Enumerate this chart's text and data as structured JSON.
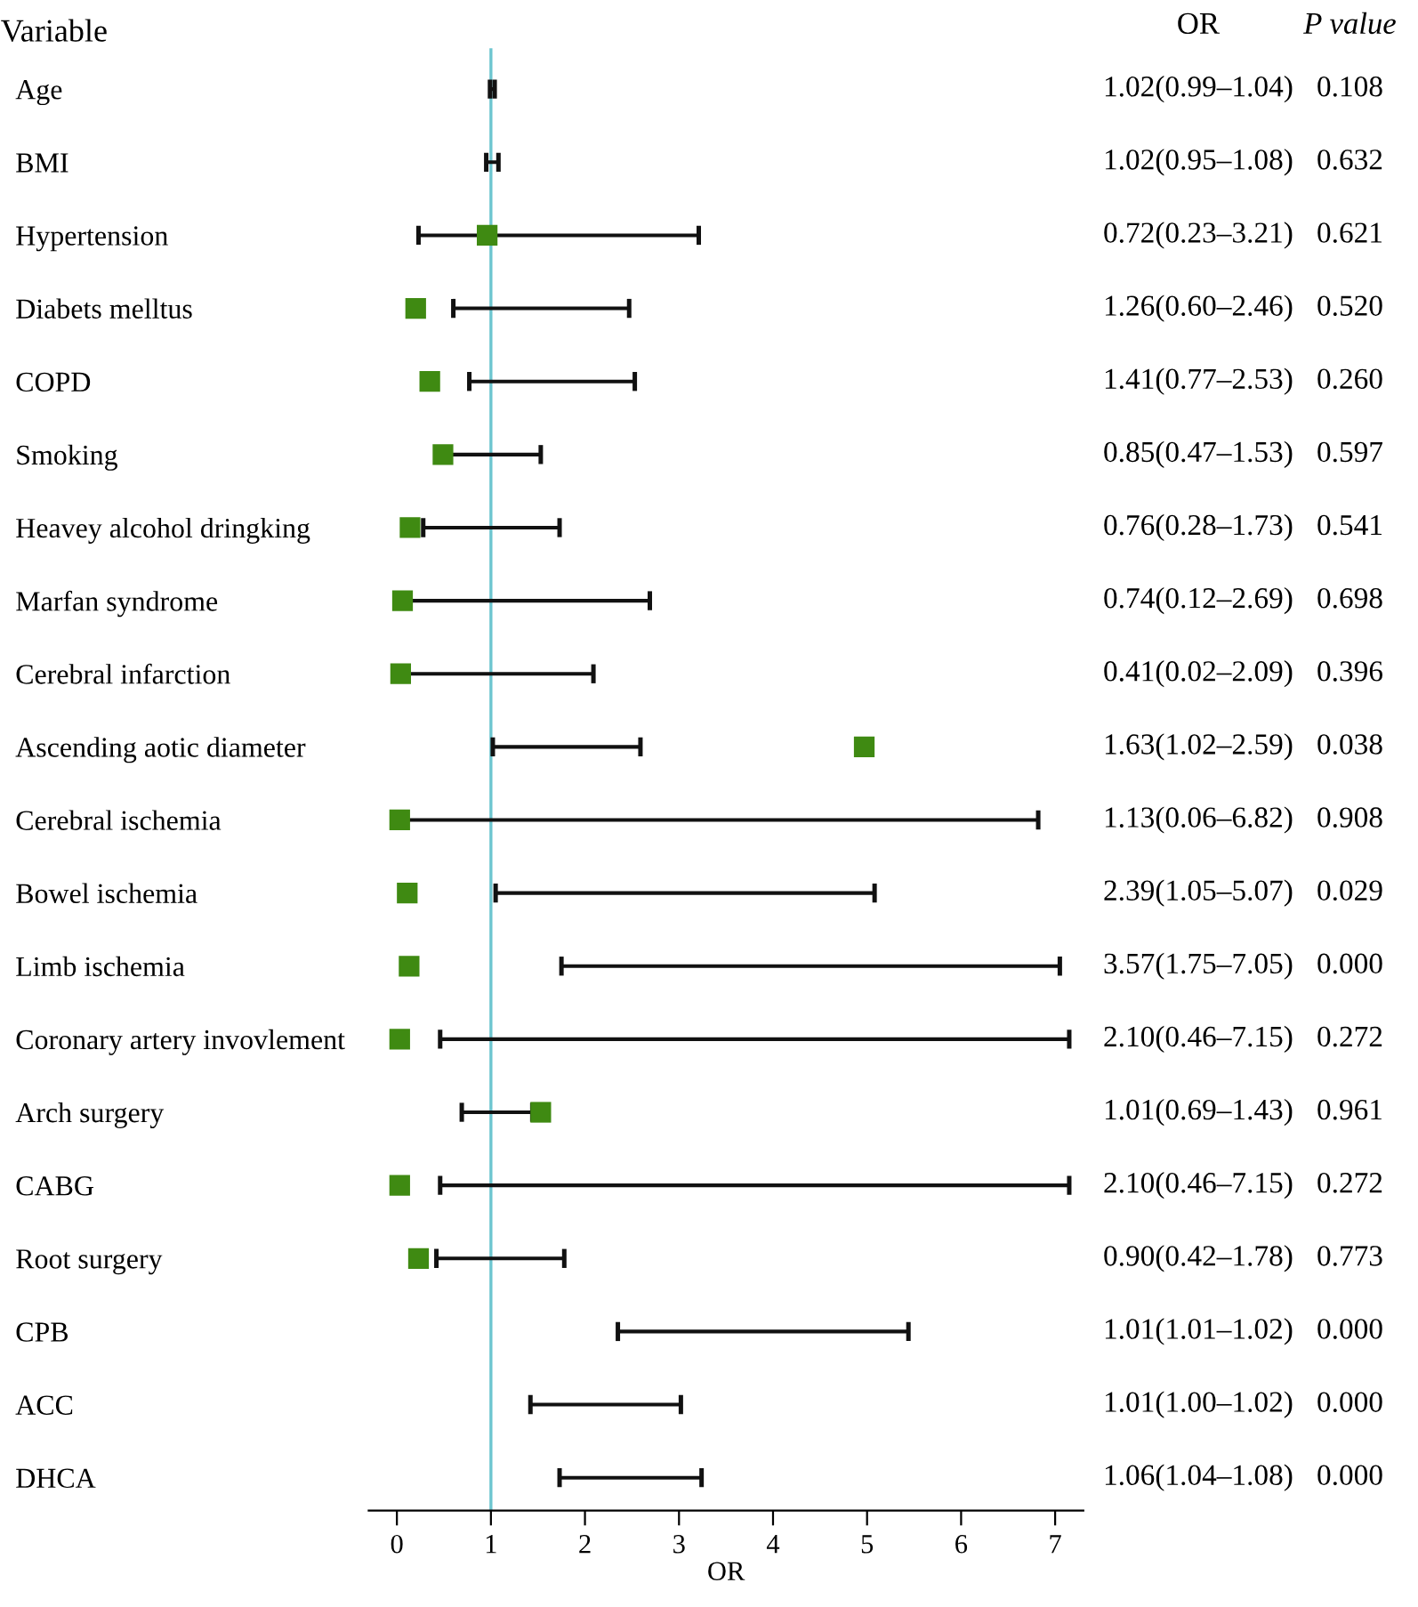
{
  "chart_data": {
    "type": "scatter",
    "orientation": "horizontal",
    "ylabel": "Variable",
    "xlabel": "OR",
    "categories": [
      "Age",
      "BMI",
      "Hypertension",
      "Diabets melltus",
      "COPD",
      "Smoking",
      "Heavey alcohol dringking",
      "Marfan syndrome",
      "Cerebral infarction",
      "Ascending aotic diameter",
      "Cerebral ischemia",
      "Bowel ischemia",
      "Limb ischemia",
      "Coronary artery invovlement",
      "Arch surgery",
      "CABG",
      "Root surgery",
      "CPB",
      "ACC",
      "DHCA"
    ],
    "series": [
      {
        "color": "#3f8a12",
        "marker": "square",
        "values": [
          null,
          null,
          0.96,
          0.2,
          0.35,
          0.49,
          0.14,
          0.06,
          0.04,
          4.97,
          0.03,
          0.11,
          0.13,
          0.03,
          1.53,
          0.03,
          0.23,
          null,
          null,
          null
        ]
      },
      {
        "type": "bar",
        "color": "#111111",
        "base": [
          0.99,
          0.95,
          0.23,
          0.6,
          0.77,
          0.49,
          0.28,
          0.06,
          0.04,
          1.02,
          0.03,
          1.05,
          1.75,
          0.46,
          0.69,
          0.46,
          0.42,
          2.35,
          1.42,
          1.73
        ],
        "values": [
          0.05,
          0.13,
          2.98,
          1.87,
          1.76,
          1.04,
          1.45,
          2.63,
          2.05,
          1.57,
          6.79,
          4.03,
          5.3,
          6.69,
          0.75,
          6.69,
          1.36,
          3.09,
          1.6,
          1.51
        ]
      }
    ],
    "xlim": [
      -0.3,
      7.3
    ],
    "xticks": [
      0,
      1,
      2,
      3,
      4,
      5,
      6,
      7
    ],
    "ref_lines": [
      {
        "axis": "x",
        "value": 1,
        "color": "#6cc5cf"
      }
    ],
    "grid": false,
    "legend": false,
    "annotations": [
      "OR",
      "P value",
      "1.02(0.99–1.04)",
      "0.108",
      "1.02(0.95–1.08)",
      "0.632",
      "0.72(0.23–3.21)",
      "0.621",
      "1.26(0.60–2.46)",
      "0.520",
      "1.41(0.77–2.53)",
      "0.260",
      "0.85(0.47–1.53)",
      "0.597",
      "0.76(0.28–1.73)",
      "0.541",
      "0.74(0.12–2.69)",
      "0.698",
      "0.41(0.02–2.09)",
      "0.396",
      "1.63(1.02–2.59)",
      "0.038",
      "1.13(0.06–6.82)",
      "0.908",
      "2.39(1.05–5.07)",
      "0.029",
      "3.57(1.75–7.05)",
      "0.000",
      "2.10(0.46–7.15)",
      "0.272",
      "1.01(0.69–1.43)",
      "0.961",
      "2.10(0.46–7.15)",
      "0.272",
      "0.90(0.42–1.78)",
      "0.773",
      "1.01(1.01–1.02)",
      "0.000",
      "1.01(1.00–1.02)",
      "0.000",
      "1.06(1.04–1.08)",
      "0.000"
    ]
  }
}
